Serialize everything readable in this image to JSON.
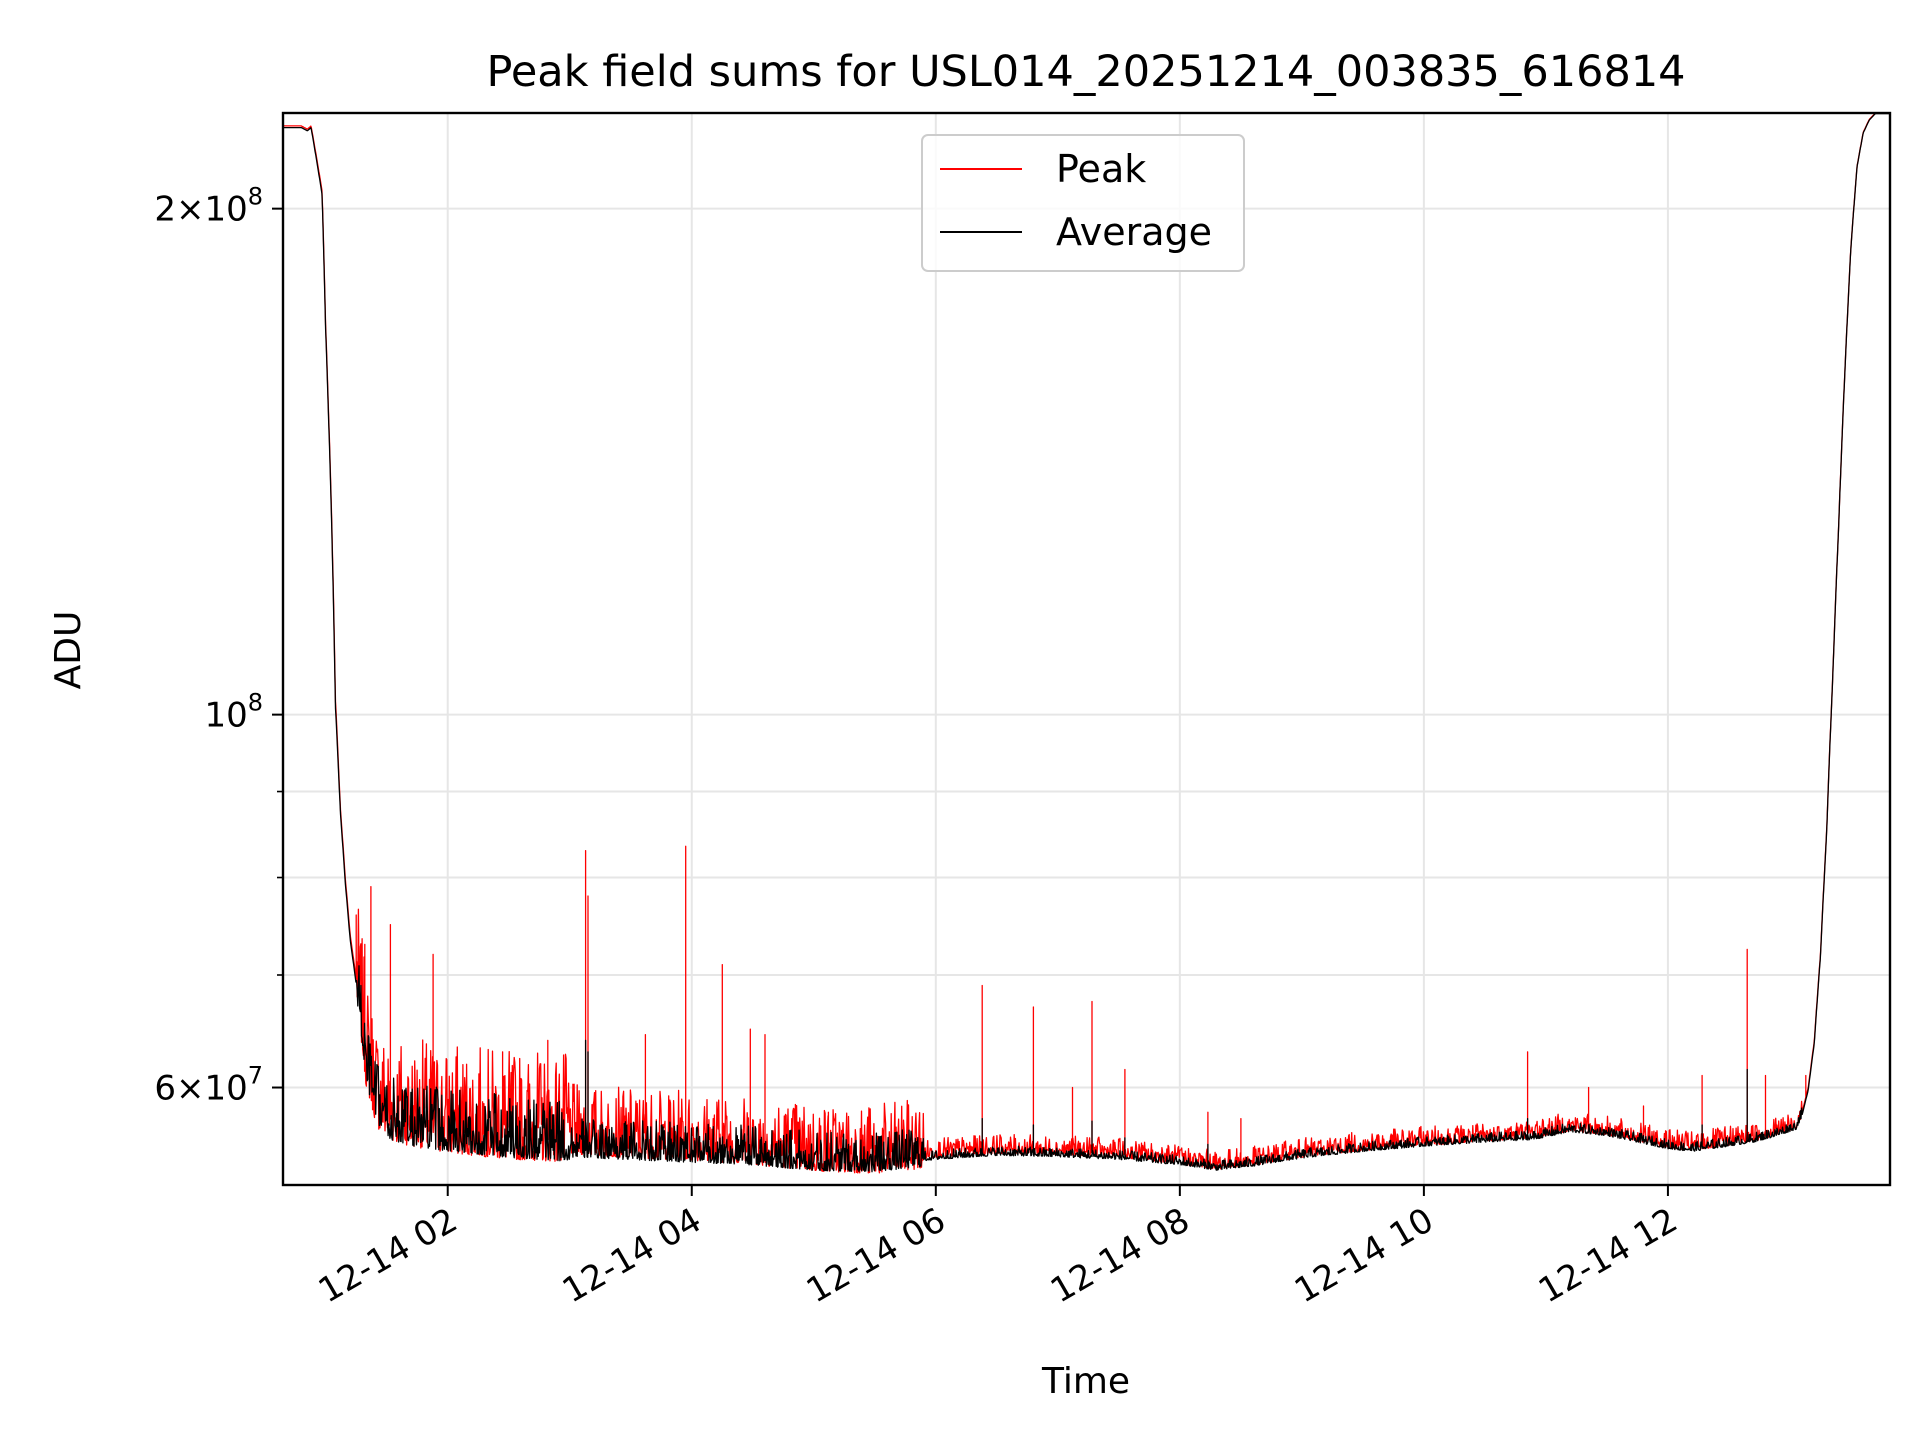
{
  "chart_data": {
    "type": "line",
    "title": "Peak field sums for USL014_20251214_003835_616814",
    "xlabel": "Time",
    "ylabel": "ADU",
    "yscale": "log",
    "grid": true,
    "legend_placement": "upper-center",
    "xlim_hours": [
      0.65,
      13.82
    ],
    "ylim": [
      52500000,
      228000000
    ],
    "x_ticks": [
      {
        "hour": 2,
        "label": "12-14 02"
      },
      {
        "hour": 4,
        "label": "12-14 04"
      },
      {
        "hour": 6,
        "label": "12-14 06"
      },
      {
        "hour": 8,
        "label": "12-14 08"
      },
      {
        "hour": 10,
        "label": "12-14 10"
      },
      {
        "hour": 12,
        "label": "12-14 12"
      }
    ],
    "y_major_ticks": [
      {
        "value": 60000000,
        "mantissa": "6",
        "base": "10",
        "exponent": "7"
      },
      {
        "value": 100000000,
        "mantissa": "",
        "base": "10",
        "exponent": "8"
      },
      {
        "value": 200000000,
        "mantissa": "2",
        "base": "10",
        "exponent": "8"
      }
    ],
    "y_minor_ticks": [
      70000000,
      80000000,
      90000000
    ],
    "series": [
      {
        "name": "Peak",
        "color": "#ff0000",
        "baseline": {
          "x": [
            0.65,
            0.8,
            0.85,
            0.88,
            0.97,
            1.0,
            1.05,
            1.08,
            1.12,
            1.16,
            1.2,
            1.28,
            1.33,
            1.42,
            1.52,
            1.7,
            2.0,
            2.5,
            3.0,
            3.5,
            4.0,
            4.5,
            5.0,
            5.5,
            6.0,
            6.5,
            7.0,
            7.5,
            8.0,
            8.3,
            8.6,
            9.0,
            9.5,
            10.0,
            10.5,
            10.9,
            11.2,
            11.5,
            11.8,
            12.0,
            12.2,
            12.5,
            12.7,
            12.9,
            13.05,
            13.1,
            13.15,
            13.2,
            13.25,
            13.3,
            13.35,
            13.4,
            13.45,
            13.5,
            13.55,
            13.6,
            13.65,
            13.7,
            13.82
          ],
          "y": [
            224000000,
            224000000,
            223000000,
            224000000,
            205000000,
            170000000,
            130000000,
            102000000,
            88000000,
            80000000,
            74000000,
            67000000,
            62000000,
            58500000,
            57500000,
            57000000,
            56500000,
            56000000,
            55800000,
            55500000,
            55300000,
            55000000,
            54500000,
            54300000,
            54800000,
            55100000,
            55000000,
            54800000,
            54300000,
            53900000,
            54200000,
            54800000,
            55300000,
            55700000,
            56000000,
            56300000,
            56800000,
            56500000,
            55900000,
            55500000,
            55300000,
            55700000,
            56000000,
            56500000,
            57000000,
            58000000,
            60000000,
            64000000,
            72000000,
            85000000,
            105000000,
            130000000,
            160000000,
            190000000,
            212000000,
            222000000,
            226000000,
            228000000,
            228000000
          ]
        },
        "spikes": [
          {
            "x": 1.25,
            "y": 76000000
          },
          {
            "x": 1.32,
            "y": 73000000
          },
          {
            "x": 1.37,
            "y": 79000000
          },
          {
            "x": 1.53,
            "y": 75000000
          },
          {
            "x": 1.88,
            "y": 72000000
          },
          {
            "x": 2.45,
            "y": 63000000
          },
          {
            "x": 2.82,
            "y": 64000000
          },
          {
            "x": 3.13,
            "y": 83000000
          },
          {
            "x": 3.15,
            "y": 78000000
          },
          {
            "x": 3.62,
            "y": 64500000
          },
          {
            "x": 3.95,
            "y": 83500000
          },
          {
            "x": 4.25,
            "y": 71000000
          },
          {
            "x": 4.48,
            "y": 65000000
          },
          {
            "x": 4.6,
            "y": 64500000
          },
          {
            "x": 5.12,
            "y": 58000000
          },
          {
            "x": 6.38,
            "y": 69000000
          },
          {
            "x": 6.8,
            "y": 67000000
          },
          {
            "x": 7.12,
            "y": 60000000
          },
          {
            "x": 7.28,
            "y": 67500000
          },
          {
            "x": 7.55,
            "y": 61500000
          },
          {
            "x": 8.23,
            "y": 58000000
          },
          {
            "x": 8.5,
            "y": 57500000
          },
          {
            "x": 10.85,
            "y": 63000000
          },
          {
            "x": 11.35,
            "y": 60000000
          },
          {
            "x": 11.8,
            "y": 58500000
          },
          {
            "x": 12.28,
            "y": 61000000
          },
          {
            "x": 12.65,
            "y": 72500000
          },
          {
            "x": 12.8,
            "y": 61000000
          },
          {
            "x": 13.13,
            "y": 61000000
          }
        ]
      },
      {
        "name": "Average",
        "color": "#000000",
        "baseline": {
          "x": [
            0.65,
            0.8,
            0.85,
            0.88,
            0.97,
            1.0,
            1.05,
            1.08,
            1.12,
            1.16,
            1.2,
            1.28,
            1.33,
            1.42,
            1.52,
            1.7,
            2.0,
            2.5,
            3.0,
            3.5,
            4.0,
            4.5,
            5.0,
            5.5,
            6.0,
            6.5,
            7.0,
            7.5,
            8.0,
            8.3,
            8.6,
            9.0,
            9.5,
            10.0,
            10.5,
            10.9,
            11.2,
            11.5,
            11.8,
            12.0,
            12.2,
            12.5,
            12.7,
            12.9,
            13.05,
            13.1,
            13.15,
            13.2,
            13.25,
            13.3,
            13.35,
            13.4,
            13.45,
            13.5,
            13.55,
            13.6,
            13.65,
            13.7,
            13.82
          ],
          "y": [
            223500000,
            223500000,
            222500000,
            223500000,
            204000000,
            169000000,
            129000000,
            101000000,
            87500000,
            79500000,
            73500000,
            66500000,
            61500000,
            58000000,
            56800000,
            56300000,
            55900000,
            55400000,
            55100000,
            54900000,
            54700000,
            54500000,
            54100000,
            54000000,
            54500000,
            54800000,
            54700000,
            54500000,
            54100000,
            53700000,
            54000000,
            54600000,
            55100000,
            55500000,
            55800000,
            56000000,
            56600000,
            56300000,
            55700000,
            55300000,
            55100000,
            55500000,
            55800000,
            56300000,
            56800000,
            57800000,
            59800000,
            63800000,
            71800000,
            84800000,
            104800000,
            129800000,
            159800000,
            189800000,
            211800000,
            221800000,
            225800000,
            227800000,
            227800000
          ]
        },
        "spikes": [
          {
            "x": 3.13,
            "y": 64000000
          },
          {
            "x": 3.15,
            "y": 63000000
          },
          {
            "x": 6.38,
            "y": 57500000
          },
          {
            "x": 6.8,
            "y": 57000000
          },
          {
            "x": 7.28,
            "y": 57300000
          },
          {
            "x": 7.55,
            "y": 56000000
          },
          {
            "x": 8.23,
            "y": 55500000
          },
          {
            "x": 10.85,
            "y": 57500000
          },
          {
            "x": 11.35,
            "y": 57000000
          },
          {
            "x": 12.65,
            "y": 61500000
          },
          {
            "x": 12.28,
            "y": 57000000
          }
        ]
      }
    ],
    "legend": [
      {
        "label": "Peak",
        "color": "#ff0000"
      },
      {
        "label": "Average",
        "color": "#000000"
      }
    ]
  }
}
